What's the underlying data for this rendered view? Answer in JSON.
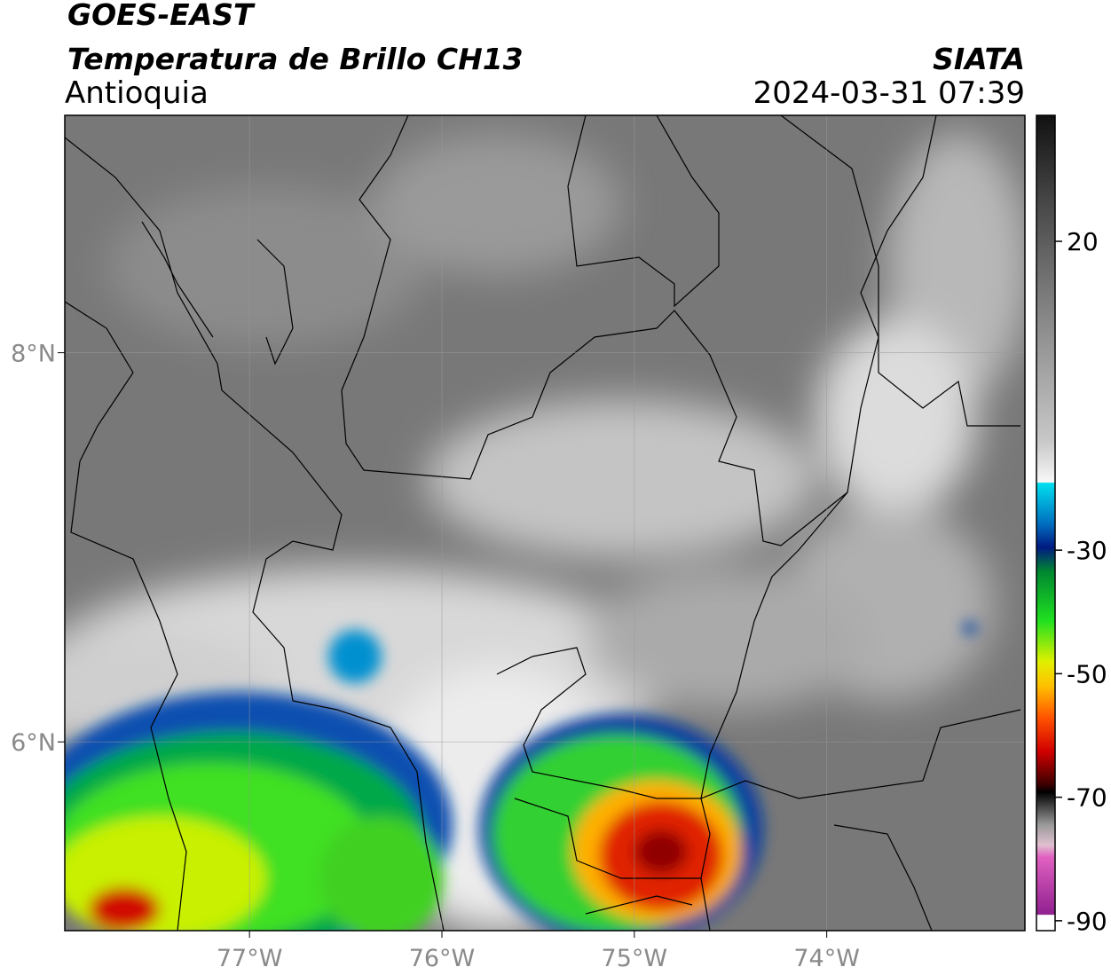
{
  "header": {
    "title": "GOES-EAST",
    "subtitle": "Temperatura de Brillo CH13",
    "region": "Antioquia",
    "source": "SIATA",
    "datetime": "2024-03-31 07:39"
  },
  "map": {
    "lonlim": [
      -77.96,
      -72.97
    ],
    "latlim": [
      5.03,
      9.22
    ],
    "lon_ticks": [
      {
        "value": -77,
        "label": "77°W"
      },
      {
        "value": -76,
        "label": "76°W"
      },
      {
        "value": -75,
        "label": "75°W"
      },
      {
        "value": -74,
        "label": "74°W"
      }
    ],
    "lat_ticks": [
      {
        "value": 8,
        "label": "8°N"
      },
      {
        "value": 6,
        "label": "6°N"
      }
    ]
  },
  "colorbar": {
    "lim": [
      -91.6,
      40.4
    ],
    "ticks": [
      20,
      -30,
      -50,
      -70,
      -90
    ]
  }
}
